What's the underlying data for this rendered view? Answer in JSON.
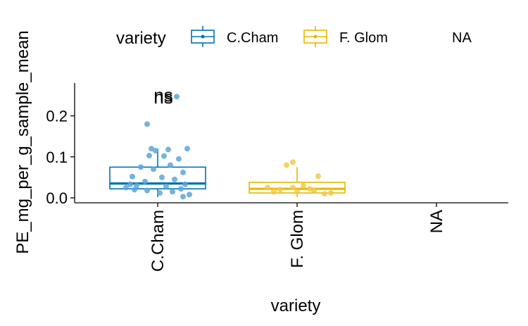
{
  "chart_data": {
    "type": "box",
    "xlabel": "variety",
    "ylabel": "PE_mg_per_g_sample_mean",
    "categories": [
      "C.Cham",
      "F. Glom",
      "NA"
    ],
    "yticks": [
      0.0,
      0.1,
      0.2
    ],
    "ytick_labels": [
      "0.0",
      "0.1",
      "0.2"
    ],
    "ylim": [
      -0.012,
      0.28
    ],
    "legend": {
      "title": "variety",
      "position": "top",
      "entries": [
        {
          "label": "C.Cham",
          "color": "#0072B2"
        },
        {
          "label": "F. Glom",
          "color": "#E6B800"
        },
        {
          "label": "NA",
          "color": ""
        }
      ]
    },
    "annotations": [
      {
        "text": "ns",
        "category": "C.Cham",
        "y": 0.258
      },
      {
        "text": "ns",
        "category": "C.Cham",
        "y": 0.263
      }
    ],
    "series": [
      {
        "category": "C.Cham",
        "color": "#0072B2",
        "point_color": "#5DA5DA",
        "box": {
          "q1": 0.022,
          "median": 0.035,
          "q3": 0.075,
          "whisker_low": 0.002,
          "whisker_high": 0.12
        },
        "points": [
          {
            "dx": -0.05,
            "y": 0.18
          },
          {
            "dx": 0.09,
            "y": 0.247
          },
          {
            "dx": -0.03,
            "y": 0.12
          },
          {
            "dx": -0.01,
            "y": 0.115
          },
          {
            "dx": 0.05,
            "y": 0.118
          },
          {
            "dx": 0.14,
            "y": 0.12
          },
          {
            "dx": -0.04,
            "y": 0.103
          },
          {
            "dx": 0.03,
            "y": 0.102
          },
          {
            "dx": 0.1,
            "y": 0.095
          },
          {
            "dx": 0.06,
            "y": 0.08
          },
          {
            "dx": -0.08,
            "y": 0.075
          },
          {
            "dx": -0.02,
            "y": 0.07
          },
          {
            "dx": 0.12,
            "y": 0.062
          },
          {
            "dx": -0.12,
            "y": 0.052
          },
          {
            "dx": 0.02,
            "y": 0.05
          },
          {
            "dx": 0.08,
            "y": 0.045
          },
          {
            "dx": -0.06,
            "y": 0.04
          },
          {
            "dx": 0.13,
            "y": 0.033
          },
          {
            "dx": -0.1,
            "y": 0.03
          },
          {
            "dx": 0.04,
            "y": 0.028
          },
          {
            "dx": -0.15,
            "y": 0.025
          },
          {
            "dx": 0.11,
            "y": 0.022
          },
          {
            "dx": -0.11,
            "y": 0.02
          },
          {
            "dx": -0.05,
            "y": 0.018
          },
          {
            "dx": 0.07,
            "y": 0.015
          },
          {
            "dx": 0.01,
            "y": 0.012
          },
          {
            "dx": 0.15,
            "y": 0.008
          },
          {
            "dx": 0.12,
            "y": 0.003
          },
          {
            "dx": -0.13,
            "y": 0.033
          }
        ]
      },
      {
        "category": "F. Glom",
        "color": "#E6B800",
        "point_color": "#F3C84B",
        "box": {
          "q1": 0.012,
          "median": 0.022,
          "q3": 0.038,
          "whisker_low": 0.002,
          "whisker_high": 0.075
        },
        "points": [
          {
            "dx": -0.02,
            "y": 0.087
          },
          {
            "dx": -0.05,
            "y": 0.08
          },
          {
            "dx": 0.1,
            "y": 0.053
          },
          {
            "dx": -0.14,
            "y": 0.025
          },
          {
            "dx": -0.08,
            "y": 0.02
          },
          {
            "dx": -0.02,
            "y": 0.025
          },
          {
            "dx": 0.03,
            "y": 0.03
          },
          {
            "dx": 0.08,
            "y": 0.018
          },
          {
            "dx": 0.13,
            "y": 0.01
          },
          {
            "dx": 0.16,
            "y": 0.012
          },
          {
            "dx": -0.11,
            "y": 0.015
          },
          {
            "dx": 0.0,
            "y": 0.015
          },
          {
            "dx": 0.06,
            "y": 0.022
          }
        ]
      }
    ]
  }
}
